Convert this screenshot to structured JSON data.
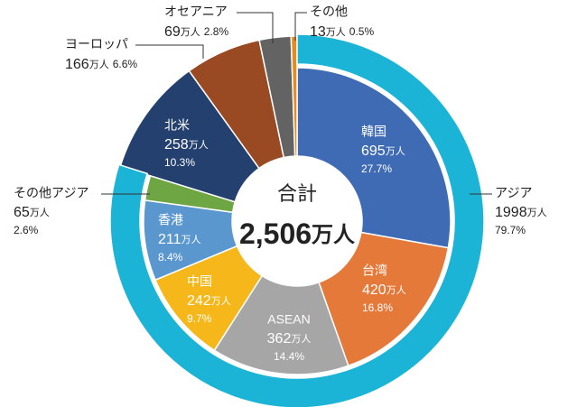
{
  "chart_data": {
    "type": "donut",
    "unit": "万人",
    "center": {
      "title": "合計",
      "total": {
        "value": 2506,
        "label": "2,506"
      }
    },
    "inner": {
      "categories": [
        "韓国",
        "台湾",
        "ASEAN",
        "中国",
        "香港",
        "その他アジア",
        "北米",
        "ヨーロッパ",
        "オセアニア",
        "その他"
      ],
      "values": [
        695,
        420,
        362,
        242,
        211,
        65,
        258,
        166,
        69,
        13
      ],
      "percent_labels": [
        "27.7%",
        "16.8%",
        "14.4%",
        "9.7%",
        "8.4%",
        "2.6%",
        "10.3%",
        "6.6%",
        "2.8%",
        "0.5%"
      ],
      "colors": [
        "#3f6bb5",
        "#e5793a",
        "#a6a6a6",
        "#f6b71b",
        "#5b97cf",
        "#6ea644",
        "#23406f",
        "#9a4a23",
        "#636363",
        "#e88a1e"
      ]
    },
    "outer": {
      "categories": [
        "アジア"
      ],
      "values": [
        1998
      ],
      "percent_labels": [
        "79.7%"
      ],
      "colors": [
        "#1cb4d6"
      ]
    }
  }
}
